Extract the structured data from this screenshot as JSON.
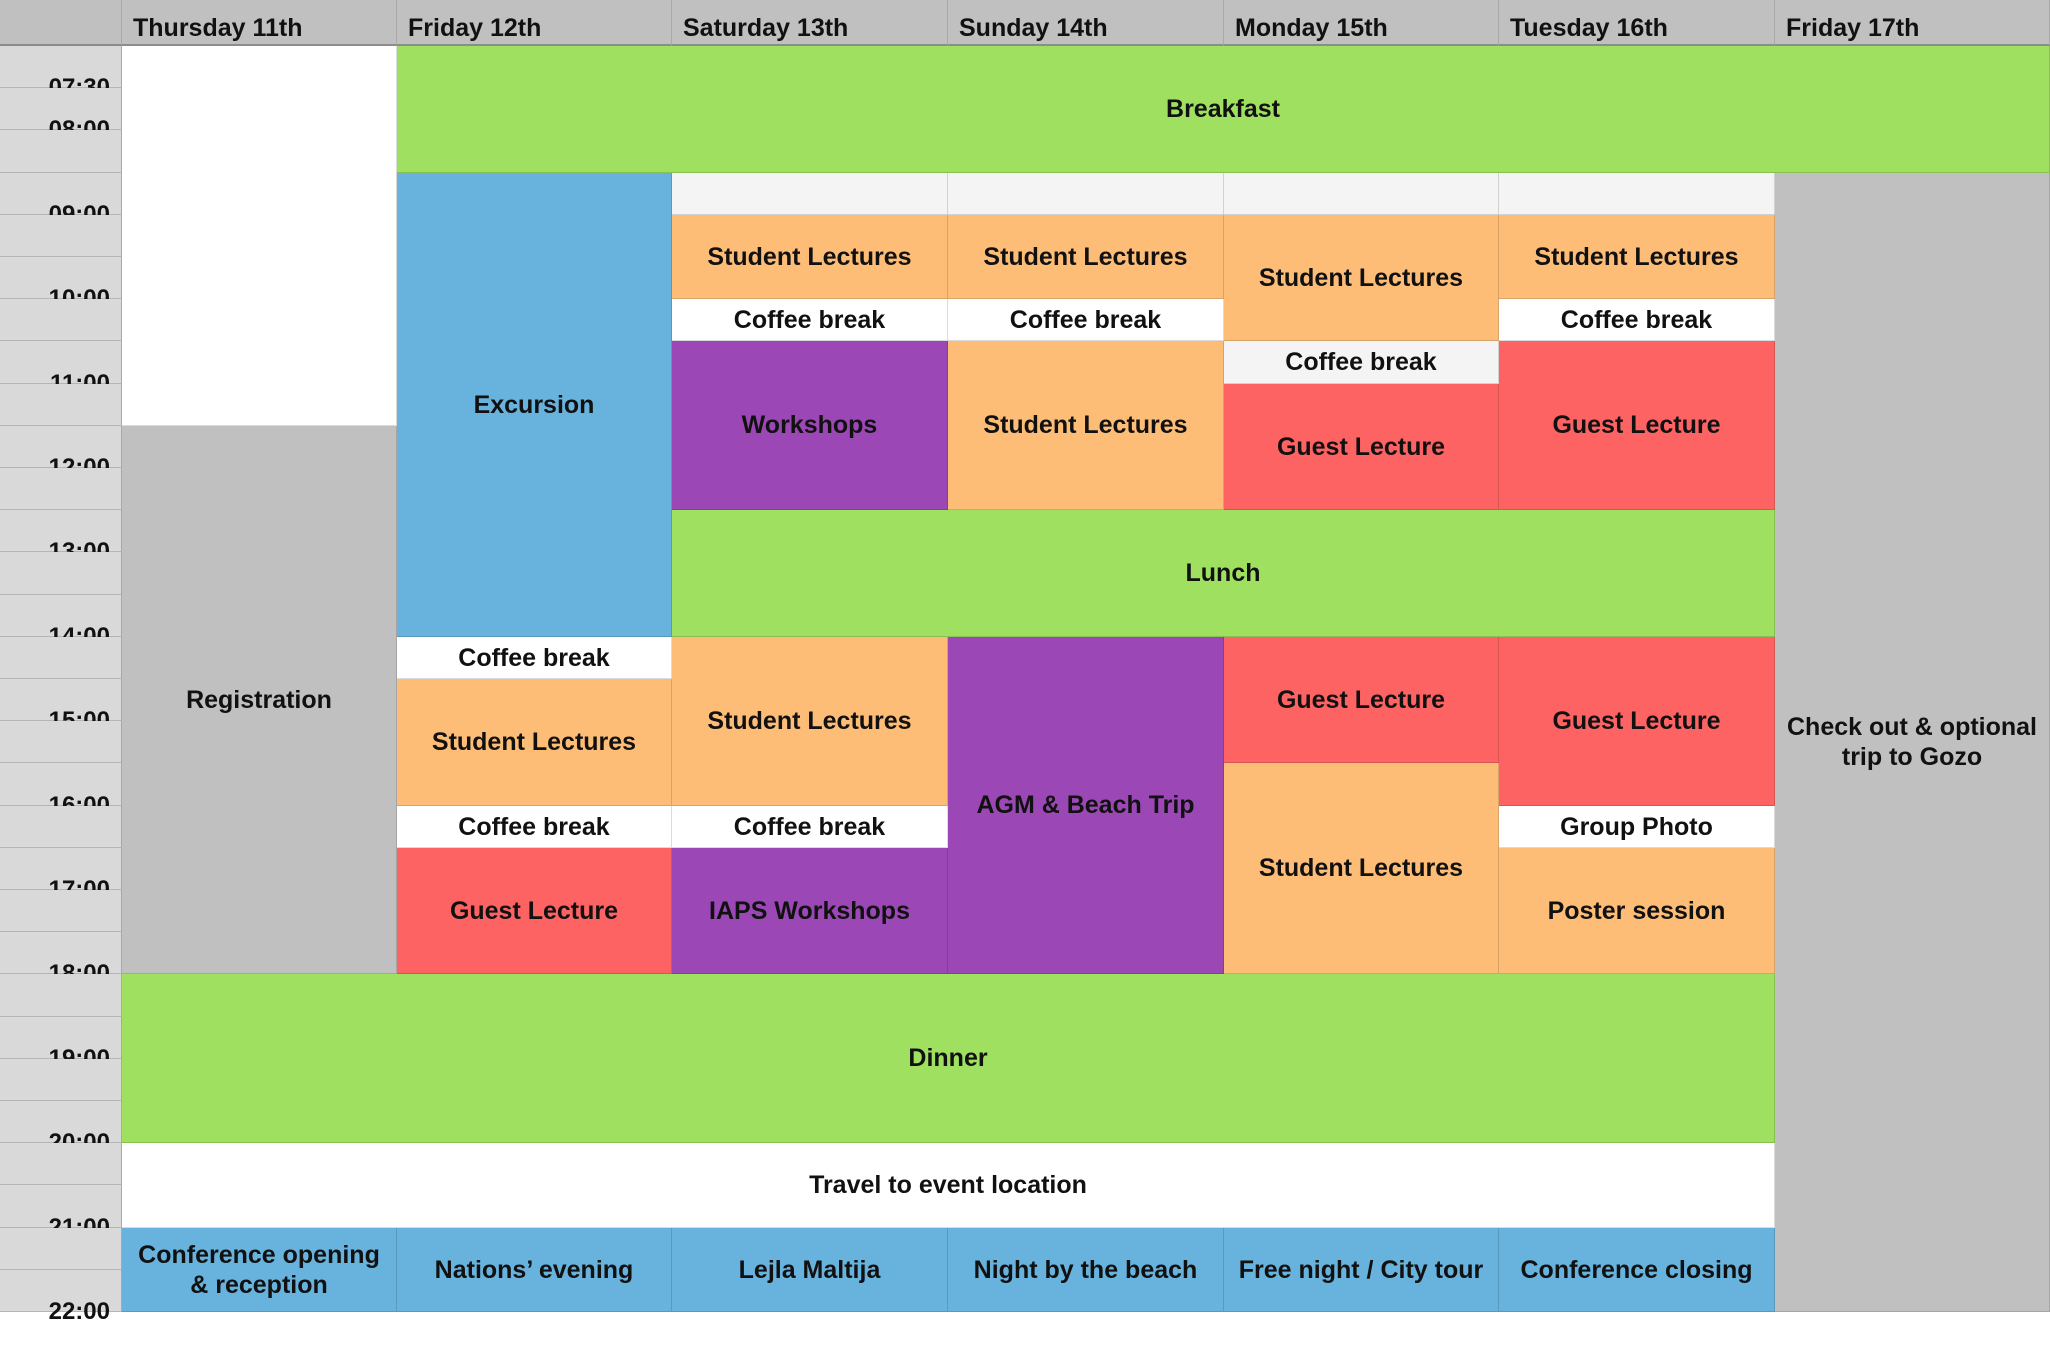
{
  "header": {
    "days": [
      "Thursday 11th",
      "Friday 12th",
      "Saturday 13th",
      "Sunday 14th",
      "Monday 15th",
      "Tuesday 16th",
      "Friday 17th"
    ]
  },
  "time_labels": [
    "07:30",
    "08:00",
    "",
    "09:00",
    "",
    "10:00",
    "",
    "11:00",
    "",
    "12:00",
    "",
    "13:00",
    "",
    "14:00",
    "",
    "15:00",
    "",
    "16:00",
    "",
    "17:00",
    "",
    "18:00",
    "",
    "19:00",
    "",
    "20:00",
    "",
    "21:00",
    "",
    "22:00"
  ],
  "colors": {
    "green": "#a0e060",
    "blue": "#68b3de",
    "orange": "#fdbd77",
    "purple": "#9b48b6",
    "red": "#fc6362",
    "grey": "#c0c0c0",
    "white": "#ffffff",
    "light": "#f4f4f4",
    "header": "#c0c0c0",
    "time": "#d9d9d9"
  },
  "events": [
    {
      "day": 0,
      "row": 0,
      "span": 9,
      "label": "",
      "color": "white"
    },
    {
      "day": 1,
      "row": 0,
      "span": 3,
      "cols": 6,
      "label": "Breakfast",
      "color": "green"
    },
    {
      "day": 0,
      "row": 9,
      "span": 13,
      "label": "Registration",
      "color": "grey"
    },
    {
      "day": 1,
      "row": 3,
      "span": 11,
      "label": "Excursion",
      "color": "blue"
    },
    {
      "day": 1,
      "row": 14,
      "span": 1,
      "label": "Coffee break",
      "color": "white"
    },
    {
      "day": 1,
      "row": 15,
      "span": 3,
      "label": "Student Lectures",
      "color": "orange"
    },
    {
      "day": 1,
      "row": 18,
      "span": 1,
      "label": "Coffee break",
      "color": "white"
    },
    {
      "day": 1,
      "row": 19,
      "span": 3,
      "label": "Guest Lecture",
      "color": "red"
    },
    {
      "day": 2,
      "row": 3,
      "span": 1,
      "label": "",
      "color": "light"
    },
    {
      "day": 2,
      "row": 4,
      "span": 2,
      "label": "Student Lectures",
      "color": "orange"
    },
    {
      "day": 2,
      "row": 6,
      "span": 1,
      "label": "Coffee break",
      "color": "white"
    },
    {
      "day": 2,
      "row": 7,
      "span": 4,
      "label": "Workshops",
      "color": "purple"
    },
    {
      "day": 2,
      "row": 11,
      "span": 3,
      "cols": 4,
      "label": "Lunch",
      "color": "green"
    },
    {
      "day": 2,
      "row": 14,
      "span": 4,
      "label": "Student Lectures",
      "color": "orange"
    },
    {
      "day": 2,
      "row": 18,
      "span": 1,
      "label": "Coffee break",
      "color": "white"
    },
    {
      "day": 2,
      "row": 19,
      "span": 3,
      "label": "IAPS Workshops",
      "color": "purple"
    },
    {
      "day": 3,
      "row": 3,
      "span": 1,
      "label": "",
      "color": "light"
    },
    {
      "day": 3,
      "row": 4,
      "span": 2,
      "label": "Student Lectures",
      "color": "orange"
    },
    {
      "day": 3,
      "row": 6,
      "span": 1,
      "label": "Coffee break",
      "color": "white"
    },
    {
      "day": 3,
      "row": 7,
      "span": 4,
      "label": "Student Lectures",
      "color": "orange"
    },
    {
      "day": 3,
      "row": 14,
      "span": 8,
      "label": "AGM & Beach Trip",
      "color": "purple"
    },
    {
      "day": 4,
      "row": 3,
      "span": 1,
      "label": "",
      "color": "light"
    },
    {
      "day": 4,
      "row": 4,
      "span": 3,
      "label": "Student Lectures",
      "color": "orange"
    },
    {
      "day": 4,
      "row": 7,
      "span": 1,
      "label": "Coffee break",
      "color": "light"
    },
    {
      "day": 4,
      "row": 8,
      "span": 3,
      "label": "Guest Lecture",
      "color": "red"
    },
    {
      "day": 4,
      "row": 14,
      "span": 3,
      "label": "Guest Lecture",
      "color": "red"
    },
    {
      "day": 4,
      "row": 17,
      "span": 5,
      "label": "Student Lectures",
      "color": "orange"
    },
    {
      "day": 5,
      "row": 3,
      "span": 1,
      "label": "",
      "color": "light"
    },
    {
      "day": 5,
      "row": 4,
      "span": 2,
      "label": "Student Lectures",
      "color": "orange"
    },
    {
      "day": 5,
      "row": 6,
      "span": 1,
      "label": "Coffee break",
      "color": "white"
    },
    {
      "day": 5,
      "row": 7,
      "span": 4,
      "label": "Guest Lecture",
      "color": "red"
    },
    {
      "day": 5,
      "row": 14,
      "span": 4,
      "label": "Guest Lecture",
      "color": "red"
    },
    {
      "day": 5,
      "row": 18,
      "span": 1,
      "label": "Group Photo",
      "color": "white"
    },
    {
      "day": 5,
      "row": 19,
      "span": 3,
      "label": "Poster session",
      "color": "orange"
    },
    {
      "day": 6,
      "row": 0,
      "span": 3,
      "label": "",
      "color": "green"
    },
    {
      "day": 6,
      "row": 3,
      "span": 27,
      "label": "Check out & optional trip to Gozo",
      "color": "grey"
    },
    {
      "day": 0,
      "row": 22,
      "span": 4,
      "cols": 6,
      "label": "Dinner",
      "color": "green"
    },
    {
      "day": 0,
      "row": 26,
      "span": 2,
      "cols": 6,
      "label": "Travel to event location",
      "color": "white"
    },
    {
      "day": 0,
      "row": 28,
      "span": 2,
      "label": "Conference opening & reception",
      "color": "blue"
    },
    {
      "day": 1,
      "row": 28,
      "span": 2,
      "label": "Nations’ evening",
      "color": "blue"
    },
    {
      "day": 2,
      "row": 28,
      "span": 2,
      "label": "Lejla Maltija",
      "color": "blue"
    },
    {
      "day": 3,
      "row": 28,
      "span": 2,
      "label": "Night by the beach",
      "color": "blue"
    },
    {
      "day": 4,
      "row": 28,
      "span": 2,
      "label": "Free night / City tour",
      "color": "blue"
    },
    {
      "day": 5,
      "row": 28,
      "span": 2,
      "label": "Conference closing",
      "color": "blue"
    }
  ]
}
